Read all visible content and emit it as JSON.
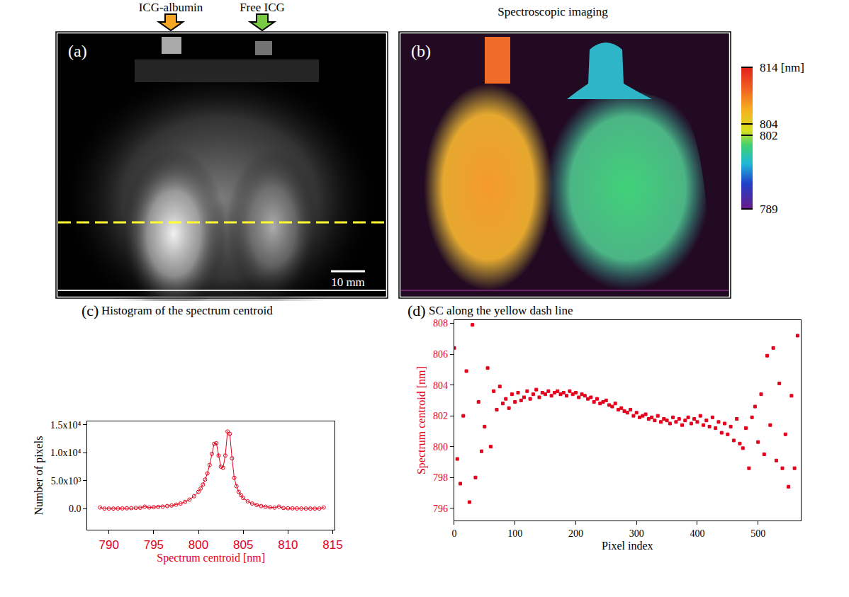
{
  "figure": {
    "panels": [
      {
        "label": "(a)",
        "arrows": [
          {
            "text": "ICG-albumin",
            "color": "#f5a623"
          },
          {
            "text": "Free ICG",
            "color": "#7ac943"
          }
        ],
        "scale_bar": "10 mm"
      },
      {
        "label": "(b)",
        "title": "Spectroscopic imaging",
        "colorbar": {
          "range": [
            789,
            814
          ],
          "ticks": [
            {
              "value": 814,
              "label": "814 [nm]"
            },
            804,
            802,
            789
          ]
        }
      }
    ]
  },
  "chart_data": [
    {
      "type": "line",
      "panel": "(c)",
      "title": "Histogram of the spectrum centroid",
      "x_label": "Spectrum centroid [nm]",
      "y_label": "Number of pixels",
      "color": "#e3001b",
      "marker": "circle-open",
      "x": [
        789,
        789.5,
        790,
        790.5,
        791,
        791.5,
        792,
        792.5,
        793,
        793.5,
        794,
        794.5,
        795,
        795.5,
        796,
        796.5,
        797,
        797.5,
        798,
        798.5,
        799,
        799.5,
        800,
        800.25,
        800.5,
        800.75,
        801,
        801.25,
        801.5,
        801.75,
        802,
        802.25,
        802.5,
        802.75,
        803,
        803.25,
        803.5,
        803.75,
        804,
        804.25,
        804.5,
        804.75,
        805,
        805.5,
        806,
        806.5,
        807,
        807.5,
        808,
        808.5,
        809,
        809.5,
        810,
        810.5,
        811,
        811.5,
        812,
        812.5,
        813,
        813.5,
        814
      ],
      "values": [
        200,
        0,
        0,
        0,
        20,
        30,
        50,
        80,
        120,
        150,
        350,
        200,
        250,
        300,
        350,
        450,
        550,
        700,
        900,
        1200,
        1600,
        2200,
        3000,
        3600,
        4300,
        5200,
        6300,
        7800,
        9800,
        11600,
        11700,
        9500,
        7500,
        7300,
        9500,
        13800,
        13400,
        9000,
        5500,
        4000,
        3000,
        2400,
        1900,
        1300,
        900,
        650,
        450,
        320,
        230,
        170,
        350,
        100,
        60,
        40,
        20,
        10,
        5,
        0,
        0,
        0,
        200
      ],
      "xlim": [
        787.6,
        815.2
      ],
      "xticks": [
        790,
        795,
        800,
        805,
        810,
        815
      ],
      "ylim": [
        -3800,
        15600
      ],
      "yticks": [
        {
          "value": 0,
          "label": "0.0"
        },
        {
          "value": 5000,
          "label": "5.0x10³"
        },
        {
          "value": 10000,
          "label": "1.0x10⁴"
        },
        {
          "value": 15000,
          "label": "1.5x10⁴"
        }
      ]
    },
    {
      "type": "scatter",
      "panel": "(d)",
      "title": "SC along the yellow dash line",
      "x_label": "Pixel index",
      "y_label": "Spectrum centroid [nm]",
      "color": "#e3001b",
      "marker": "square",
      "x": [
        0,
        5,
        10,
        15,
        20,
        25,
        30,
        35,
        40,
        45,
        50,
        55,
        60,
        65,
        70,
        75,
        80,
        85,
        90,
        95,
        100,
        105,
        110,
        115,
        120,
        125,
        130,
        135,
        140,
        145,
        150,
        155,
        160,
        165,
        170,
        175,
        180,
        185,
        190,
        195,
        200,
        205,
        210,
        215,
        220,
        225,
        230,
        235,
        240,
        245,
        250,
        255,
        260,
        265,
        270,
        275,
        280,
        285,
        290,
        295,
        300,
        305,
        310,
        315,
        320,
        325,
        330,
        335,
        340,
        345,
        350,
        355,
        360,
        365,
        370,
        375,
        380,
        385,
        390,
        395,
        400,
        405,
        410,
        415,
        420,
        425,
        430,
        435,
        440,
        445,
        450,
        455,
        460,
        465,
        470,
        475,
        480,
        485,
        490,
        495,
        500,
        505,
        510,
        515,
        520,
        525,
        530,
        535,
        540,
        545,
        550,
        555,
        560,
        565
      ],
      "values": [
        806.4,
        799.2,
        797.6,
        802.0,
        804.9,
        796.4,
        807.9,
        798.0,
        802.9,
        799.7,
        801.3,
        805.1,
        800.0,
        803.6,
        802.4,
        803.9,
        802.8,
        803.1,
        802.5,
        803.4,
        802.9,
        803.5,
        803.0,
        803.2,
        803.6,
        803.1,
        803.4,
        803.7,
        803.2,
        803.5,
        803.4,
        803.6,
        803.3,
        803.5,
        803.6,
        803.4,
        803.5,
        803.3,
        803.6,
        803.4,
        803.5,
        803.2,
        803.4,
        803.3,
        803.1,
        803.2,
        802.9,
        803.1,
        802.8,
        802.9,
        803.0,
        802.7,
        802.6,
        802.8,
        802.4,
        802.5,
        802.3,
        802.2,
        802.4,
        802.0,
        802.2,
        801.9,
        802.0,
        802.1,
        801.8,
        801.9,
        801.7,
        802.0,
        801.6,
        801.8,
        801.7,
        801.5,
        801.9,
        801.6,
        801.8,
        801.4,
        801.7,
        801.9,
        801.5,
        801.8,
        801.6,
        802.0,
        801.4,
        801.7,
        801.3,
        801.9,
        801.2,
        801.6,
        800.9,
        801.5,
        800.8,
        801.3,
        800.4,
        801.8,
        800.2,
        799.9,
        801.2,
        798.6,
        801.9,
        802.6,
        800.3,
        803.4,
        799.5,
        805.9,
        801.4,
        806.4,
        799.1,
        804.1,
        798.6,
        800.8,
        797.4,
        803.3,
        798.6,
        807.2
      ],
      "xlim": [
        0,
        570
      ],
      "xticks": [
        0,
        100,
        200,
        300,
        400,
        500
      ],
      "ylim": [
        795.2,
        808.2
      ],
      "yticks": [
        796,
        798,
        800,
        802,
        804,
        806,
        808
      ]
    }
  ]
}
